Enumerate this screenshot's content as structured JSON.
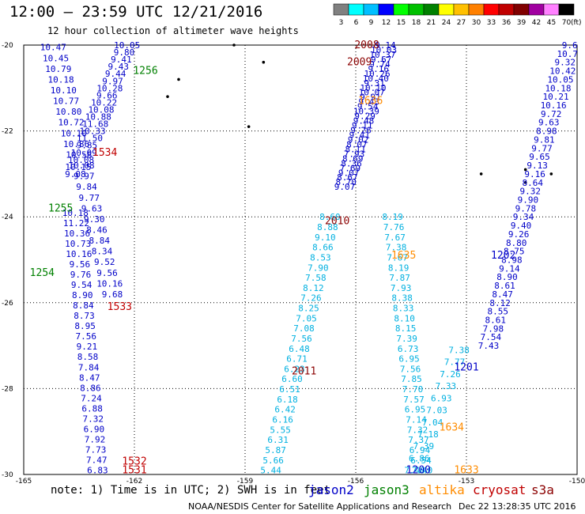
{
  "header": {
    "title": "12:00 — 23:59 UTC 12/21/2016",
    "subtitle": "12 hour collection of altimeter wave heights"
  },
  "legend": {
    "unit": "(ft)",
    "levels": [
      {
        "label": "3",
        "color": "#808080"
      },
      {
        "label": "6",
        "color": "#00ffff"
      },
      {
        "label": "9",
        "color": "#00bfff"
      },
      {
        "label": "12",
        "color": "#0000ff"
      },
      {
        "label": "15",
        "color": "#00ff00"
      },
      {
        "label": "18",
        "color": "#00c000"
      },
      {
        "label": "21",
        "color": "#008000"
      },
      {
        "label": "24",
        "color": "#ffff00"
      },
      {
        "label": "27",
        "color": "#ffc000"
      },
      {
        "label": "30",
        "color": "#ff8000"
      },
      {
        "label": "33",
        "color": "#ff0000"
      },
      {
        "label": "36",
        "color": "#c00000"
      },
      {
        "label": "39",
        "color": "#800000"
      },
      {
        "label": "42",
        "color": "#a000a0"
      },
      {
        "label": "45",
        "color": "#ff80ff"
      },
      {
        "label": "70",
        "color": "#000000"
      }
    ]
  },
  "axes": {
    "x_ticks": [
      "-165",
      "-162",
      "-159",
      "-156",
      "-153",
      "-150"
    ],
    "y_ticks": [
      "-20",
      "-22",
      "-24",
      "-26",
      "-28",
      "-30"
    ],
    "lon_range": [
      -165,
      -150
    ],
    "lat_range": [
      -30,
      -20
    ]
  },
  "colors": {
    "jason2": "#0000c8",
    "jason3": "#008000",
    "altika": "#ff8c00",
    "cryosat": "#c00000",
    "s3a": "#8b0000",
    "grid": "#000000",
    "low": "#00b0e0"
  },
  "track_labels": [
    {
      "text": "2008",
      "lon": -155.7,
      "lat": -20.0,
      "color": "#8b0000"
    },
    {
      "text": "2009",
      "lon": -155.9,
      "lat": -20.4,
      "color": "#8b0000"
    },
    {
      "text": "1636",
      "lon": -155.6,
      "lat": -21.3,
      "color": "#ff8c00"
    },
    {
      "text": "1256",
      "lon": -161.7,
      "lat": -20.6,
      "color": "#008000"
    },
    {
      "text": "1534",
      "lon": -162.8,
      "lat": -22.5,
      "color": "#c00000"
    },
    {
      "text": "1255",
      "lon": -164.0,
      "lat": -23.8,
      "color": "#008000"
    },
    {
      "text": "1254",
      "lon": -164.5,
      "lat": -25.3,
      "color": "#008000"
    },
    {
      "text": "2010",
      "lon": -156.5,
      "lat": -24.1,
      "color": "#8b0000"
    },
    {
      "text": "1635",
      "lon": -154.7,
      "lat": -24.9,
      "color": "#ff8c00"
    },
    {
      "text": "1202",
      "lon": -152.0,
      "lat": -24.9,
      "color": "#0000c8"
    },
    {
      "text": "1533",
      "lon": -162.4,
      "lat": -26.1,
      "color": "#c00000"
    },
    {
      "text": "2011",
      "lon": -157.4,
      "lat": -27.6,
      "color": "#8b0000"
    },
    {
      "text": "1201",
      "lon": -153.0,
      "lat": -27.5,
      "color": "#0000c8"
    },
    {
      "text": "1634",
      "lon": -153.4,
      "lat": -28.9,
      "color": "#ff8c00"
    },
    {
      "text": "1532",
      "lon": -162.0,
      "lat": -29.7,
      "color": "#c00000"
    },
    {
      "text": "1531",
      "lon": -162.0,
      "lat": -29.9,
      "color": "#c00000"
    },
    {
      "text": "1200",
      "lon": -154.3,
      "lat": -29.9,
      "color": "#0000c8"
    },
    {
      "text": "1633",
      "lon": -153.0,
      "lat": -29.9,
      "color": "#ff8c00"
    }
  ],
  "tracks": [
    {
      "name": "jason2_left",
      "color": "#0000c8",
      "start": [
        -162.2,
        -20.0
      ],
      "end": [
        -163.6,
        -23.0
      ],
      "values": [
        "10.05",
        "9.80",
        "9.41",
        "9.43",
        "9.44",
        "9.97",
        "10.28",
        "9.66",
        "10.22",
        "10.08",
        "10.88",
        "11.68",
        "10.33",
        "11.50",
        "9.85",
        "10.09",
        "10.08",
        "10.15",
        "9.08"
      ]
    },
    {
      "name": "jason3_left",
      "color": "#0000c8",
      "start": [
        -164.2,
        -20.05
      ],
      "end": [
        -162.6,
        -25.8
      ],
      "values": [
        "10.47",
        "10.45",
        "10.79",
        "10.18",
        "10.10",
        "10.77",
        "10.80",
        "10.72",
        "10.10",
        "10.86",
        "10.58",
        "10.08",
        "9.97",
        "9.84",
        "9.77",
        "9.63",
        "9.30",
        "8.46",
        "8.84",
        "8.34",
        "9.52",
        "9.56",
        "10.16",
        "9.68"
      ]
    },
    {
      "name": "cryosat_left",
      "color": "#0000c8",
      "start": [
        -163.6,
        -23.9
      ],
      "end": [
        -163.0,
        -29.9
      ],
      "values": [
        "10.18",
        "11.22",
        "10.36",
        "10.73",
        "10.16",
        "9.56",
        "9.76",
        "9.54",
        "8.90",
        "8.84",
        "8.73",
        "8.95",
        "7.56",
        "9.21",
        "8.58",
        "7.84",
        "8.47",
        "8.86",
        "7.24",
        "6.88",
        "7.32",
        "6.90",
        "7.92",
        "7.73",
        "7.47",
        "6.83"
      ]
    },
    {
      "name": "s3a_mid",
      "color": "#0000c8",
      "start": [
        -155.2,
        -20.0
      ],
      "end": [
        -156.3,
        -23.3
      ],
      "values": [
        "9.14",
        "10.03",
        "10.37",
        "9.67",
        "9.74",
        "9.16",
        "10.26",
        "10.40",
        "9.31",
        "10.10",
        "10.07",
        "9.91",
        "9.43",
        "9.54",
        "10.39",
        "9.29",
        "9.48",
        "9.11",
        "9.26",
        "9.41",
        "9.02",
        "8.07",
        "8.11",
        "7.93",
        "8.69",
        "8.36",
        "7.69",
        "9.07",
        "8.67",
        "8.70",
        "9.07"
      ]
    },
    {
      "name": "cryosat_mid",
      "color": "#00b0e0",
      "start": [
        -156.7,
        -24.0
      ],
      "end": [
        -158.3,
        -29.9
      ],
      "values": [
        "8.60",
        "8.88",
        "9.10",
        "8.66",
        "8.53",
        "7.90",
        "7.58",
        "8.12",
        "7.26",
        "8.25",
        "7.05",
        "7.08",
        "7.56",
        "6.48",
        "6.71",
        "6.23",
        "6.60",
        "6.51",
        "6.18",
        "6.42",
        "6.16",
        "5.55",
        "6.31",
        "5.87",
        "5.66",
        "5.44"
      ]
    },
    {
      "name": "altika_mid",
      "color": "#00b0e0",
      "start": [
        -155.0,
        -24.0
      ],
      "end": [
        -154.2,
        -29.9
      ],
      "values": [
        "8.19",
        "7.76",
        "7.67",
        "7.38",
        "7.67",
        "8.19",
        "7.87",
        "7.93",
        "8.38",
        "8.33",
        "8.10",
        "8.15",
        "7.39",
        "6.73",
        "6.95",
        "7.56",
        "7.85",
        "7.70",
        "7.57",
        "6.95",
        "7.14",
        "7.32",
        "7.37",
        "6.94",
        "6.54",
        "7.40"
      ]
    },
    {
      "name": "jason2_right",
      "color": "#0000c8",
      "start": [
        -150.2,
        -20.0
      ],
      "end": [
        -152.4,
        -27.0
      ],
      "values": [
        "9.6",
        "10.7",
        "9.32",
        "10.42",
        "10.05",
        "10.18",
        "10.21",
        "10.16",
        "9.72",
        "9.63",
        "8.98",
        "9.81",
        "9.77",
        "9.65",
        "9.13",
        "9.16",
        "8.64",
        "9.32",
        "9.90",
        "9.78",
        "9.34",
        "9.40",
        "9.26",
        "8.80",
        "8.75",
        "8.98",
        "9.14",
        "8.90",
        "8.61",
        "8.47",
        "8.12",
        "8.55",
        "8.61",
        "7.98",
        "7.54",
        "7.43"
      ]
    },
    {
      "name": "jason3_right",
      "color": "#00b0e0",
      "start": [
        -153.2,
        -27.1
      ],
      "end": [
        -154.4,
        -29.9
      ],
      "values": [
        "7.38",
        "7.77",
        "7.26",
        "7.33",
        "6.93",
        "7.03",
        "7.04",
        "7.18",
        "7.39",
        "6.86",
        "7.40"
      ]
    }
  ],
  "islands": [
    {
      "lon": -159.3,
      "lat": -20.0
    },
    {
      "lon": -158.5,
      "lat": -20.4
    },
    {
      "lon": -161.1,
      "lat": -21.2
    },
    {
      "lon": -160.8,
      "lat": -20.8
    },
    {
      "lon": -158.9,
      "lat": -21.9
    },
    {
      "lon": -152.6,
      "lat": -23.0
    },
    {
      "lon": -151.4,
      "lat": -22.9
    },
    {
      "lon": -151.4,
      "lat": -23.2
    },
    {
      "lon": -150.7,
      "lat": -23.0
    }
  ],
  "footer": {
    "note": "note: 1) Time is in UTC; 2) SWH is in feet",
    "satellites": [
      {
        "name": "jason2",
        "color": "#0000c8"
      },
      {
        "name": "jason3",
        "color": "#008000"
      },
      {
        "name": "altika",
        "color": "#ff8c00"
      },
      {
        "name": "cryosat",
        "color": "#c00000"
      },
      {
        "name": "s3a",
        "color": "#8b0000"
      }
    ],
    "credit": "NOAA/NESDIS Center for Satellite Applications and Research",
    "timestamp": "Dec 22 13:28:35 UTC 2016"
  }
}
